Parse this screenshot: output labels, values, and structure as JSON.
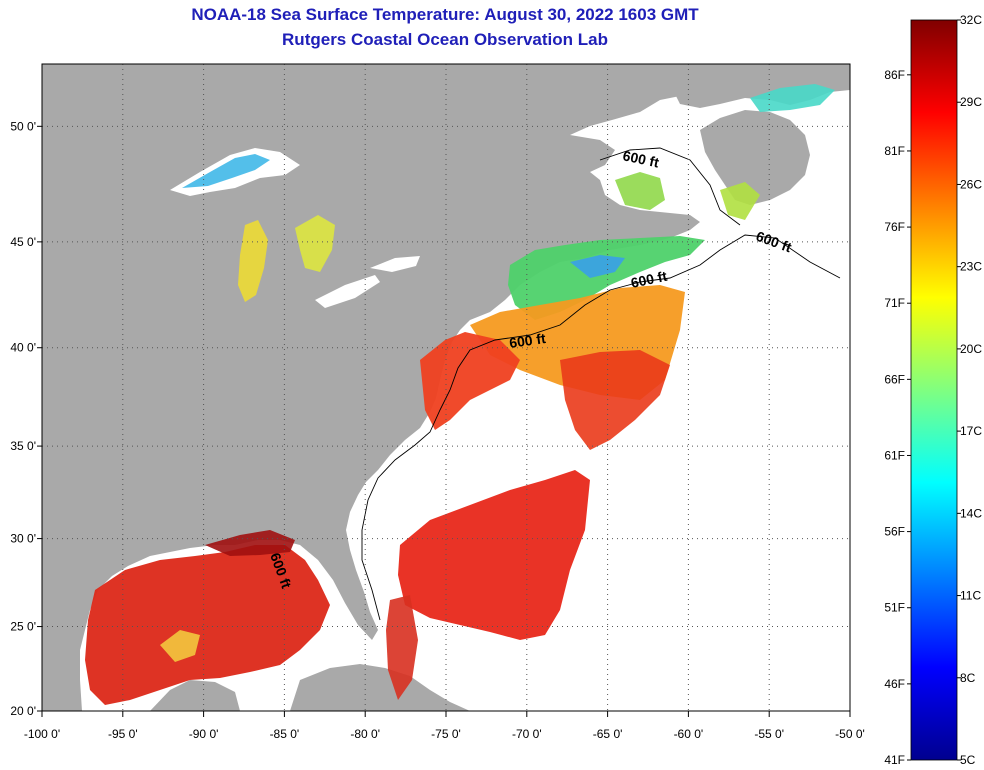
{
  "title": {
    "line1": "NOAA-18 Sea Surface Temperature:  August 30, 2022 1603 GMT",
    "line2": "Rutgers Coastal Ocean Observation Lab"
  },
  "map": {
    "lon_range": [
      -100,
      -50
    ],
    "lat_range": [
      20,
      52.5
    ],
    "lon_ticks": [
      -100,
      -95,
      -90,
      -85,
      -80,
      -75,
      -70,
      -65,
      -60,
      -55,
      -50
    ],
    "lon_labels": [
      "-100 0'",
      "-95 0'",
      "-90 0'",
      "-85 0'",
      "-80 0'",
      "-75 0'",
      "-70 0'",
      "-65 0'",
      "-60 0'",
      "-55 0'",
      "-50 0'"
    ],
    "lat_ticks": [
      20,
      25,
      30,
      35,
      40,
      45,
      50
    ],
    "lat_labels": [
      "20 0'",
      "25 0'",
      "30 0'",
      "35 0'",
      "40 0'",
      "45 0'",
      "50 0'"
    ],
    "grid": true,
    "colors": {
      "land": "#a9a9a9",
      "water_no_data": "#ffffff",
      "grid": "#555555"
    },
    "depth_contour_labels": [
      "600 ft",
      "600 ft",
      "600 ft",
      "600 ft",
      "600 ft"
    ]
  },
  "colorbar": {
    "celsius_labels": [
      "32C",
      "29C",
      "26C",
      "23C",
      "20C",
      "17C",
      "14C",
      "11C",
      "8C",
      "5C"
    ],
    "fahrenheit_labels": [
      "86F",
      "81F",
      "76F",
      "71F",
      "66F",
      "61F",
      "56F",
      "51F",
      "46F",
      "41F"
    ],
    "range_c": [
      5,
      32
    ],
    "colors": [
      "#00008f",
      "#0000ff",
      "#0080ff",
      "#00ffff",
      "#80ff80",
      "#ffff00",
      "#ff8000",
      "#ff0000",
      "#800000"
    ]
  }
}
